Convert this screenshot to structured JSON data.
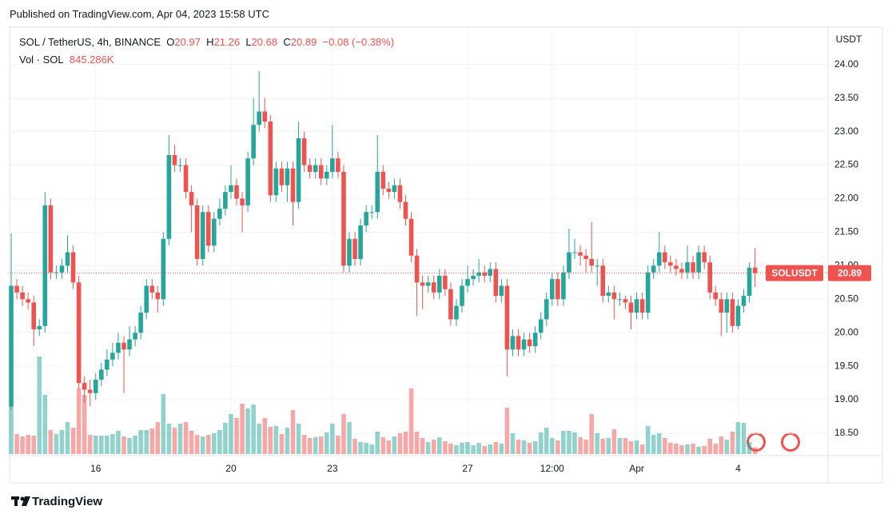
{
  "header": {
    "published": "Published on TradingView.com, Apr 04, 2023 15:58 UTC",
    "brand": "TradingView"
  },
  "chart_data": {
    "type": "candlestick",
    "title": "SOL / TetherUS, 4h, BINANCE",
    "ohlc_letters": [
      "O",
      "H",
      "L",
      "C"
    ],
    "change": "−0.08 (−0.38%)",
    "axis_unit": "USDT",
    "symbol_label": "SOLUSDT",
    "up_color": "#26a69a",
    "down_color": "#ef5350",
    "grid": true,
    "ylim": [
      18.19,
      24.51
    ],
    "yticks": [
      {
        "value": 18.5,
        "label": "18.50"
      },
      {
        "value": 19,
        "label": "19.00"
      },
      {
        "value": 19.5,
        "label": "19.50"
      },
      {
        "value": 20,
        "label": "20.00"
      },
      {
        "value": 20.5,
        "label": "20.50"
      },
      {
        "value": 21,
        "label": "21.00"
      },
      {
        "value": 21.5,
        "label": "21.50"
      },
      {
        "value": 22,
        "label": "22.00"
      },
      {
        "value": 22.5,
        "label": "22.50"
      },
      {
        "value": 23,
        "label": "23.00"
      },
      {
        "value": 23.5,
        "label": "23.50"
      },
      {
        "value": 24,
        "label": "24.00"
      }
    ],
    "categories": [
      null,
      null,
      null,
      null,
      null,
      null,
      null,
      null,
      null,
      null,
      null,
      null,
      null,
      null,
      null,
      "16",
      null,
      null,
      null,
      null,
      null,
      null,
      null,
      null,
      null,
      null,
      null,
      null,
      null,
      null,
      null,
      null,
      null,
      null,
      null,
      null,
      null,
      null,
      null,
      "20",
      null,
      null,
      null,
      null,
      null,
      null,
      null,
      null,
      null,
      null,
      null,
      null,
      null,
      null,
      null,
      null,
      null,
      "23",
      null,
      null,
      null,
      null,
      null,
      null,
      null,
      null,
      null,
      null,
      null,
      null,
      null,
      null,
      null,
      null,
      null,
      null,
      null,
      null,
      null,
      null,
      null,
      "27",
      null,
      null,
      null,
      null,
      null,
      null,
      null,
      null,
      null,
      null,
      null,
      null,
      null,
      null,
      "12:00",
      null,
      null,
      null,
      null,
      null,
      null,
      null,
      null,
      null,
      null,
      null,
      null,
      null,
      null,
      "Apr",
      null,
      null,
      null,
      null,
      null,
      null,
      null,
      null,
      null,
      null,
      null,
      null,
      null,
      null,
      null,
      null,
      null,
      "4",
      null,
      null,
      null
    ],
    "open": [
      18.9,
      20.7,
      20.6,
      20.5,
      20.45,
      20.05,
      20.1,
      21.9,
      20.9,
      20.9,
      21.0,
      21.2,
      20.75,
      19.25,
      19.15,
      19.1,
      19.3,
      19.45,
      19.6,
      19.7,
      19.85,
      19.75,
      19.9,
      20.0,
      20.3,
      20.7,
      20.6,
      20.5,
      21.4,
      22.65,
      22.5,
      22.5,
      22.1,
      21.9,
      21.1,
      21.8,
      21.3,
      21.7,
      21.85,
      22.1,
      22.2,
      22.0,
      21.9,
      22.6,
      23.1,
      23.3,
      23.15,
      22.05,
      22.45,
      22.2,
      22.45,
      21.95,
      22.9,
      22.5,
      22.4,
      22.5,
      22.3,
      22.4,
      22.6,
      22.4,
      21.0,
      21.4,
      21.1,
      21.6,
      21.8,
      21.8,
      22.4,
      22.15,
      22.1,
      22.2,
      21.95,
      21.7,
      21.15,
      20.75,
      20.7,
      20.75,
      20.6,
      20.85,
      20.65,
      20.2,
      20.4,
      20.7,
      20.8,
      20.85,
      20.9,
      20.85,
      20.95,
      20.55,
      20.7,
      19.75,
      19.95,
      19.75,
      19.9,
      19.8,
      20.0,
      20.2,
      20.5,
      20.8,
      20.5,
      20.9,
      21.2,
      21.2,
      21.15,
      21.1,
      21.0,
      21.0,
      20.55,
      20.6,
      20.5,
      20.5,
      20.45,
      20.3,
      20.5,
      20.3,
      20.9,
      21.0,
      21.2,
      21.05,
      21.0,
      20.95,
      20.9,
      21.05,
      20.9,
      21.2,
      21.05,
      20.6,
      20.5,
      20.3,
      20.5,
      20.1,
      20.4,
      20.55,
      20.97
    ],
    "high": [
      21.48,
      20.8,
      20.7,
      20.6,
      20.55,
      20.2,
      22.1,
      22.0,
      21.0,
      21.1,
      21.45,
      21.3,
      20.85,
      19.35,
      19.3,
      19.4,
      19.55,
      19.75,
      19.85,
      20.0,
      19.95,
      20.1,
      20.1,
      20.4,
      20.8,
      20.8,
      20.7,
      21.5,
      22.95,
      22.8,
      22.6,
      22.6,
      22.2,
      22.0,
      21.9,
      21.9,
      21.8,
      22.0,
      22.2,
      22.5,
      22.3,
      22.1,
      22.7,
      23.5,
      23.9,
      23.5,
      23.25,
      22.55,
      22.55,
      22.55,
      22.55,
      23.15,
      23.0,
      22.6,
      22.6,
      22.6,
      22.5,
      23.1,
      22.7,
      22.5,
      21.5,
      21.5,
      21.7,
      21.9,
      21.9,
      22.95,
      22.5,
      22.25,
      22.3,
      22.3,
      22.05,
      21.8,
      21.25,
      20.85,
      20.85,
      20.85,
      20.95,
      20.95,
      20.75,
      20.5,
      20.8,
      21.0,
      20.95,
      21.1,
      21.0,
      21.05,
      21.05,
      20.8,
      20.8,
      20.05,
      20.05,
      20.0,
      20.0,
      20.1,
      20.3,
      20.6,
      20.9,
      20.9,
      21.0,
      21.55,
      21.4,
      21.3,
      21.25,
      21.65,
      21.1,
      21.1,
      20.7,
      20.7,
      20.6,
      20.55,
      20.55,
      20.6,
      20.6,
      21.0,
      21.1,
      21.5,
      21.3,
      21.15,
      21.1,
      21.05,
      21.3,
      21.15,
      21.3,
      21.3,
      21.15,
      20.7,
      20.6,
      20.6,
      20.6,
      20.5,
      20.65,
      21.05,
      21.26
    ],
    "low": [
      18.85,
      20.5,
      20.4,
      20.35,
      19.8,
      19.95,
      20.0,
      20.8,
      20.8,
      20.8,
      20.9,
      20.65,
      19.15,
      18.95,
      18.9,
      19.0,
      19.2,
      19.35,
      19.5,
      19.6,
      19.1,
      19.65,
      19.8,
      19.9,
      20.2,
      20.5,
      20.3,
      20.4,
      21.3,
      22.4,
      22.4,
      22.0,
      21.5,
      21.0,
      21.0,
      21.2,
      21.2,
      21.6,
      21.75,
      22.0,
      21.9,
      21.5,
      21.8,
      22.5,
      23.0,
      23.05,
      21.95,
      21.95,
      22.1,
      21.95,
      21.6,
      21.85,
      22.4,
      22.3,
      22.3,
      22.2,
      22.2,
      22.3,
      22.3,
      20.9,
      20.9,
      21.0,
      21.0,
      21.5,
      21.7,
      21.7,
      22.05,
      22.0,
      22.0,
      21.85,
      21.6,
      21.05,
      20.25,
      20.35,
      20.6,
      20.5,
      20.5,
      20.55,
      20.1,
      20.1,
      20.3,
      20.6,
      20.7,
      20.75,
      20.75,
      20.75,
      20.45,
      20.45,
      19.35,
      19.65,
      19.65,
      19.65,
      19.7,
      19.7,
      19.9,
      20.1,
      20.4,
      20.4,
      20.4,
      20.8,
      21.1,
      21.0,
      20.9,
      20.9,
      20.7,
      20.45,
      20.45,
      20.2,
      20.4,
      20.35,
      20.05,
      20.2,
      20.2,
      20.2,
      20.8,
      20.9,
      20.95,
      20.9,
      20.85,
      20.8,
      20.8,
      20.8,
      20.8,
      20.95,
      20.5,
      20.4,
      19.95,
      20.0,
      20.0,
      20.05,
      20.3,
      20.45,
      20.68
    ],
    "close": [
      20.7,
      20.6,
      20.5,
      20.45,
      20.05,
      20.1,
      21.9,
      20.9,
      20.9,
      21.0,
      21.2,
      20.75,
      19.25,
      19.15,
      19.1,
      19.3,
      19.45,
      19.6,
      19.7,
      19.85,
      19.75,
      19.9,
      20.0,
      20.3,
      20.7,
      20.6,
      20.5,
      21.4,
      22.65,
      22.5,
      22.5,
      22.1,
      21.9,
      21.1,
      21.8,
      21.3,
      21.7,
      21.85,
      22.1,
      22.2,
      22.0,
      21.9,
      22.6,
      23.1,
      23.3,
      23.15,
      22.05,
      22.45,
      22.2,
      22.45,
      21.95,
      22.9,
      22.5,
      22.4,
      22.5,
      22.3,
      22.4,
      22.6,
      22.4,
      21.0,
      21.4,
      21.1,
      21.6,
      21.8,
      21.8,
      22.4,
      22.15,
      22.1,
      22.2,
      21.95,
      21.7,
      21.15,
      20.75,
      20.7,
      20.75,
      20.6,
      20.85,
      20.65,
      20.2,
      20.4,
      20.7,
      20.8,
      20.85,
      20.9,
      20.85,
      20.95,
      20.55,
      20.7,
      19.75,
      19.95,
      19.75,
      19.9,
      19.8,
      20.0,
      20.2,
      20.5,
      20.8,
      20.5,
      20.9,
      21.2,
      21.2,
      21.15,
      21.1,
      21.0,
      21.0,
      20.55,
      20.6,
      20.5,
      20.5,
      20.45,
      20.3,
      20.5,
      20.3,
      20.9,
      21.0,
      21.2,
      21.05,
      21.0,
      20.95,
      20.9,
      21.05,
      20.9,
      21.2,
      21.05,
      20.6,
      20.5,
      20.3,
      20.5,
      20.1,
      20.4,
      20.55,
      20.97,
      20.89
    ],
    "volume": {
      "name": "Vol · SOL",
      "last_value_label": "845.286K",
      "values": [
        6000,
        2500,
        2200,
        2400,
        2300,
        12200,
        7400,
        3000,
        2500,
        3000,
        4000,
        3300,
        8200,
        7400,
        2400,
        2300,
        2300,
        2300,
        2500,
        2900,
        2200,
        2000,
        2300,
        3000,
        3000,
        3200,
        4000,
        7500,
        3800,
        3300,
        3800,
        4000,
        2900,
        2400,
        2200,
        2400,
        2600,
        3000,
        3900,
        5000,
        4500,
        6300,
        5700,
        6200,
        3800,
        4500,
        3400,
        3500,
        2500,
        3300,
        5500,
        3800,
        2400,
        2000,
        2100,
        2200,
        2700,
        3800,
        2300,
        5000,
        4000,
        1900,
        1500,
        1400,
        1200,
        2800,
        2100,
        1700,
        2200,
        2600,
        2800,
        8200,
        2800,
        2000,
        1500,
        1800,
        2100,
        1600,
        1300,
        1100,
        1400,
        1500,
        1100,
        1400,
        1000,
        1200,
        1500,
        1300,
        5800,
        2600,
        1800,
        1700,
        1400,
        1600,
        2700,
        3300,
        2000,
        1700,
        2900,
        2900,
        2700,
        2100,
        1800,
        5000,
        2600,
        1900,
        2000,
        3100,
        2000,
        2000,
        1600,
        1700,
        1200,
        3500,
        2400,
        2600,
        2000,
        1400,
        1300,
        1100,
        1200,
        1300,
        900,
        1000,
        1900,
        1300,
        2200,
        1800,
        2800,
        4000,
        3900,
        1500,
        845.286
      ]
    }
  }
}
